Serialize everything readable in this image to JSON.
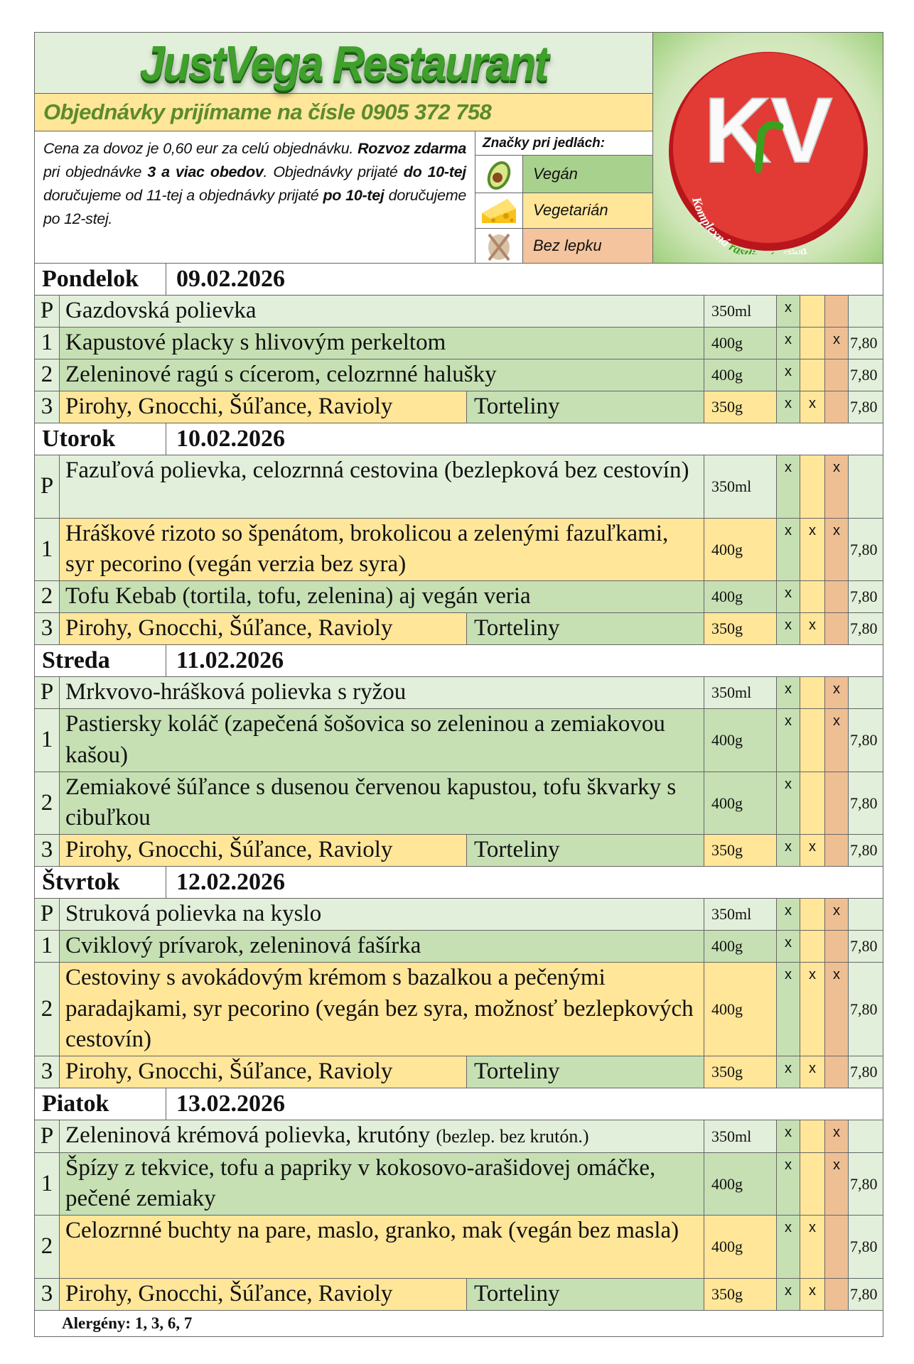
{
  "header": {
    "title": "JustVega Restaurant",
    "phone_line": "Objednávky prijímame na čísle 0905 372 758",
    "info": [
      {
        "t": "Cena za dovoz je 0,60 eur za celú objednávku. ",
        "b": false
      },
      {
        "t": "Rozvoz zdarma",
        "b": true
      },
      {
        "t": " pri objednávke ",
        "b": false
      },
      {
        "t": "3 a viac obedov",
        "b": true
      },
      {
        "t": ". Objednávky prijaté ",
        "b": false
      },
      {
        "t": "do 10-tej",
        "b": true
      },
      {
        "t": " doručujeme od 11-tej a objednávky prijaté ",
        "b": false
      },
      {
        "t": "po 10-tej",
        "b": true
      },
      {
        "t": " doručujeme po 12-stej.",
        "b": false
      }
    ],
    "legend_title": "Značky pri jedlách:",
    "legend": [
      {
        "icon": "avocado-icon",
        "label": "Vegán",
        "color": "#a9d18e"
      },
      {
        "icon": "cheese-icon",
        "label": "Vegetarián",
        "color": "#ffe699"
      },
      {
        "icon": "crossed-bread-icon",
        "label": "Bez lepku",
        "color": "#f4c49e"
      }
    ],
    "logo": {
      "letters": "KV",
      "tagline_1": "Komplexná",
      "tagline_2": "rastlinná",
      "tagline_3": "výživa"
    }
  },
  "colors": {
    "soup": "#e2efda",
    "green": "#c6e0b4",
    "yellow": "#ffe699",
    "peach": "#efbf94",
    "title": "#3fa02c"
  },
  "days": [
    {
      "name": "Pondelok",
      "date": "09.02.2026",
      "items": [
        {
          "num": "P",
          "name": "Gazdovská polievka",
          "weight": "350ml",
          "v": "x",
          "vg": "",
          "bl": "",
          "price": "",
          "bg": "soup",
          "lines": 1
        },
        {
          "num": "1",
          "name": "Kapustové placky s hlivovým perkeltom",
          "weight": "400g",
          "v": "x",
          "vg": "",
          "bl": "x",
          "price": "7,80",
          "bg": "green",
          "lines": 1
        },
        {
          "num": "2",
          "name": "Zeleninové ragú s cícerom, celozrnné halušky",
          "weight": "400g",
          "v": "x",
          "vg": "",
          "bl": "",
          "price": "7,80",
          "bg": "green",
          "lines": 1
        },
        {
          "num": "3",
          "name": "Pirohy, Gnocchi, Šúľance, Ravioly",
          "extra": "Torteliny",
          "weight": "350g",
          "v": "x",
          "vg": "x",
          "bl": "",
          "price": "7,80",
          "bg": "yellow",
          "lines": 1
        }
      ]
    },
    {
      "name": "Utorok",
      "date": "10.02.2026",
      "items": [
        {
          "num": "P",
          "name": "Fazuľová polievka, celozrnná cestovina (bezlepková bez cestovín)",
          "weight": "350ml",
          "v": "x",
          "vg": "",
          "bl": "x",
          "price": "",
          "bg": "soup",
          "lines": 2
        },
        {
          "num": "1",
          "name": "Hráškové rizoto so špenátom, brokolicou a zelenými fazuľkami, syr pecorino (vegán verzia bez syra)",
          "weight": "400g",
          "v": "x",
          "vg": "x",
          "bl": "x",
          "price": "7,80",
          "bg": "yellow",
          "lines": 2
        },
        {
          "num": "2",
          "name": "Tofu Kebab (tortila, tofu, zelenina) aj vegán veria",
          "weight": "400g",
          "v": "x",
          "vg": "",
          "bl": "",
          "price": "7,80",
          "bg": "green",
          "lines": 1
        },
        {
          "num": "3",
          "name": "Pirohy, Gnocchi, Šúľance, Ravioly",
          "extra": "Torteliny",
          "weight": "350g",
          "v": "x",
          "vg": "x",
          "bl": "",
          "price": "7,80",
          "bg": "yellow",
          "lines": 1
        }
      ]
    },
    {
      "name": "Streda",
      "date": "11.02.2026",
      "items": [
        {
          "num": "P",
          "name": "Mrkvovo-hrášková polievka s ryžou",
          "weight": "350ml",
          "v": "x",
          "vg": "",
          "bl": "x",
          "price": "",
          "bg": "soup",
          "lines": 1
        },
        {
          "num": "1",
          "name": "Pastiersky koláč (zapečená šošovica so zeleninou a zemiakovou kašou)",
          "weight": "400g",
          "v": "x",
          "vg": "",
          "bl": "x",
          "price": "7,80",
          "bg": "green",
          "lines": 2
        },
        {
          "num": "2",
          "name": "Zemiakové šúľance s dusenou červenou kapustou, tofu škvarky s cibuľkou",
          "weight": "400g",
          "v": "x",
          "vg": "",
          "bl": "",
          "price": "7,80",
          "bg": "green",
          "lines": 2
        },
        {
          "num": "3",
          "name": "Pirohy, Gnocchi, Šúľance, Ravioly",
          "extra": "Torteliny",
          "weight": "350g",
          "v": "x",
          "vg": "x",
          "bl": "",
          "price": "7,80",
          "bg": "yellow",
          "lines": 1
        }
      ]
    },
    {
      "name": "Štvrtok",
      "date": "12.02.2026",
      "items": [
        {
          "num": "P",
          "name": "Struková polievka na kyslo",
          "weight": "350ml",
          "v": "x",
          "vg": "",
          "bl": "x",
          "price": "",
          "bg": "soup",
          "lines": 1
        },
        {
          "num": "1",
          "name": "Cviklový prívarok, zeleninová fašírka",
          "weight": "400g",
          "v": "x",
          "vg": "",
          "bl": "",
          "price": "7,80",
          "bg": "green",
          "lines": 1
        },
        {
          "num": "2",
          "name": "Cestoviny s avokádovým krémom s bazalkou a pečenými paradajkami, syr pecorino (vegán bez syra, možnosť bezlepkových cestovín)",
          "weight": "400g",
          "v": "x",
          "vg": "x",
          "bl": "x",
          "price": "7,80",
          "bg": "yellow",
          "lines": 3
        },
        {
          "num": "3",
          "name": "Pirohy, Gnocchi, Šúľance, Ravioly",
          "extra": "Torteliny",
          "weight": "350g",
          "v": "x",
          "vg": "x",
          "bl": "",
          "price": "7,80",
          "bg": "yellow",
          "lines": 1
        }
      ]
    },
    {
      "name": "Piatok",
      "date": "13.02.2026",
      "items": [
        {
          "num": "P",
          "name": "Zeleninová krémová polievka, krutóny",
          "note": "(bezlep. bez krutón.)",
          "weight": "350ml",
          "v": "x",
          "vg": "",
          "bl": "x",
          "price": "",
          "bg": "soup",
          "lines": 1
        },
        {
          "num": "1",
          "name": "Špízy z tekvice, tofu a papriky v kokosovo-arašidovej omáčke, pečené zemiaky",
          "weight": "400g",
          "v": "x",
          "vg": "",
          "bl": "x",
          "price": "7,80",
          "bg": "green",
          "lines": 2
        },
        {
          "num": "2",
          "name": "Celozrnné buchty na pare, maslo, granko, mak (vegán bez masla)",
          "weight": "400g",
          "v": "x",
          "vg": "x",
          "bl": "",
          "price": "7,80",
          "bg": "yellow",
          "lines": 2
        },
        {
          "num": "3",
          "name": "Pirohy, Gnocchi, Šúľance, Ravioly",
          "extra": "Torteliny",
          "weight": "350g",
          "v": "x",
          "vg": "x",
          "bl": "",
          "price": "7,80",
          "bg": "yellow",
          "lines": 1
        }
      ]
    }
  ],
  "footer": {
    "allergens": "Alergény: 1, 3, 6, 7"
  }
}
